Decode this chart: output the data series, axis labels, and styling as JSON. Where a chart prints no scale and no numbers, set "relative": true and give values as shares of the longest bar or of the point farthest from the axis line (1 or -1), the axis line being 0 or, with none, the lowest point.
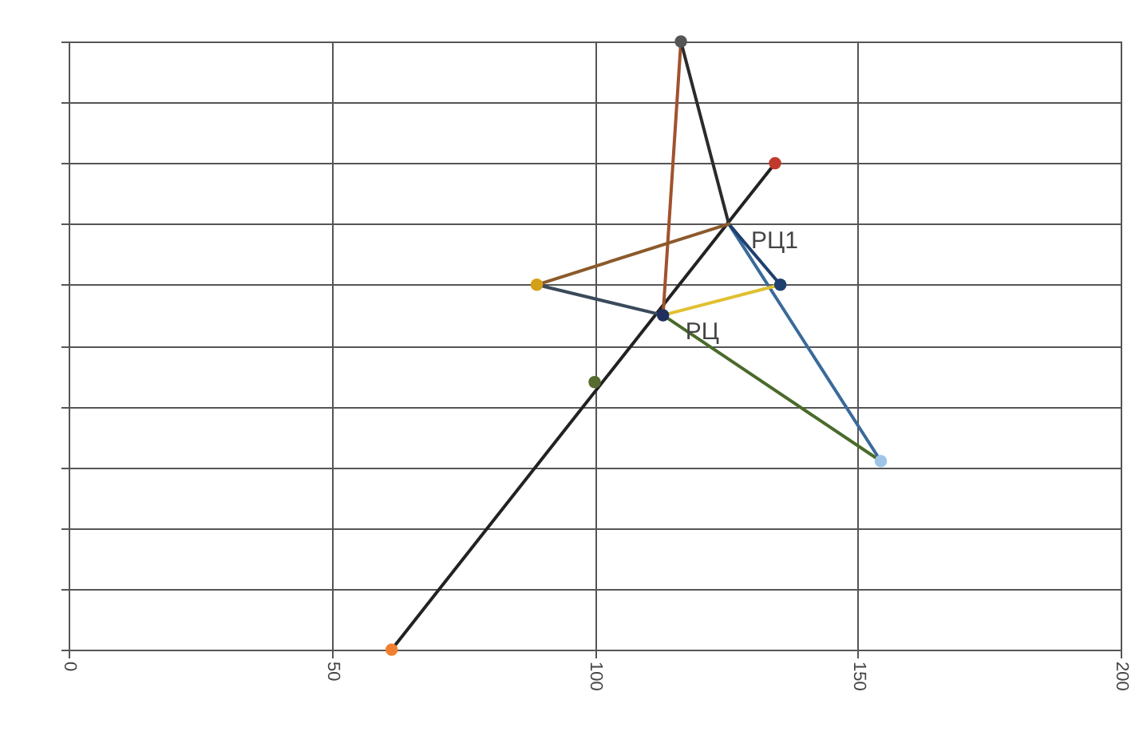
{
  "chart_data": {
    "type": "line",
    "relative": true,
    "xlim": [
      0,
      200
    ],
    "xticks": [
      0,
      50,
      100,
      150,
      200
    ],
    "tick_labels": "x",
    "grid": true,
    "line_style": "solid",
    "series": [
      {
        "color": "#222222",
        "x": [
          61.4,
          134.3
        ],
        "values": [
          0,
          0.8
        ]
      },
      {
        "color": "#a0522d",
        "x": [
          116.4,
          113
        ],
        "values": [
          1,
          0.55
        ]
      },
      {
        "color": "#2b2b2b",
        "x": [
          116.4,
          125.5
        ],
        "values": [
          1,
          0.7
        ]
      },
      {
        "color": "#3a6a9a",
        "x": [
          125.5,
          154.4
        ],
        "values": [
          0.7,
          0.31
        ]
      },
      {
        "color": "#1f3f6f",
        "x": [
          125.5,
          135.3
        ],
        "values": [
          0.7,
          0.6
        ]
      },
      {
        "color": "#8b5a2b",
        "x": [
          89,
          125.5
        ],
        "values": [
          0.6,
          0.7
        ]
      },
      {
        "color": "#3a4a5a",
        "x": [
          89,
          113
        ],
        "values": [
          0.6,
          0.55
        ]
      },
      {
        "color": "#e0c030",
        "x": [
          113,
          135.3
        ],
        "values": [
          0.55,
          0.6
        ]
      },
      {
        "color": "#4a6a2a",
        "x": [
          113,
          154.4
        ],
        "values": [
          0.55,
          0.31
        ]
      },
      {
        "type": "scatter",
        "marker": "circle",
        "x": [
          116.4,
          134.3,
          89,
          135.3,
          113,
          100,
          154.4,
          61.4
        ],
        "values": [
          1,
          0.8,
          0.6,
          0.6,
          0.55,
          0.44,
          0.31,
          0
        ],
        "colors": [
          "#555555",
          "#c0392b",
          "#d4a017",
          "#1f3f6f",
          "#1f2f5f",
          "#556b2f",
          "#9ec5e8",
          "#f08030"
        ]
      }
    ],
    "annotations": [
      {
        "text": "РЦ1",
        "x": 125.5,
        "y": 0.7
      },
      {
        "text": "РЦ",
        "x": 113,
        "y": 0.55
      }
    ]
  }
}
